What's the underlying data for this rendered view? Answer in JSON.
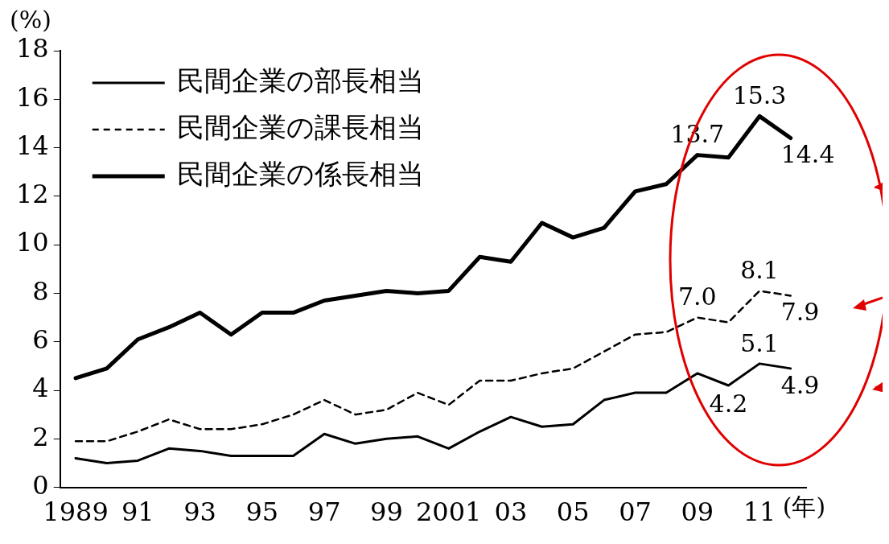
{
  "chart_data": {
    "type": "line",
    "ylabel": "(%)",
    "xlabel": "(年)",
    "categories": [
      "1989",
      null,
      "91",
      null,
      "93",
      null,
      "95",
      null,
      "97",
      null,
      "99",
      null,
      "2001",
      null,
      "03",
      null,
      "05",
      null,
      "07",
      null,
      "09",
      null,
      "11",
      null
    ],
    "ylim": [
      0,
      18
    ],
    "yticks": [
      0,
      2,
      4,
      6,
      8,
      10,
      12,
      14,
      16,
      18
    ],
    "grid": false,
    "legend": "top left",
    "marker": "none",
    "series": [
      {
        "name": "民間企業の部長相当",
        "color": "#000000",
        "line_style": "solid",
        "values": [
          1.2,
          1.0,
          1.1,
          1.6,
          1.5,
          1.3,
          1.3,
          1.3,
          2.2,
          1.8,
          2.0,
          2.1,
          1.6,
          2.3,
          2.9,
          2.5,
          2.6,
          3.6,
          3.9,
          3.9,
          4.7,
          4.2,
          5.1,
          4.9
        ],
        "value_labels": [
          null,
          null,
          null,
          null,
          null,
          null,
          null,
          null,
          null,
          null,
          null,
          null,
          null,
          null,
          null,
          null,
          null,
          null,
          null,
          null,
          null,
          "4.2",
          "5.1",
          "4.9"
        ]
      },
      {
        "name": "民間企業の課長相当",
        "color": "#000000",
        "line_style": "dashed",
        "values": [
          1.9,
          1.9,
          2.3,
          2.8,
          2.4,
          2.4,
          2.6,
          3.0,
          3.6,
          3.0,
          3.2,
          3.9,
          3.4,
          4.4,
          4.4,
          4.7,
          4.9,
          5.6,
          6.3,
          6.4,
          7.0,
          6.8,
          8.1,
          7.9
        ],
        "value_labels": [
          null,
          null,
          null,
          null,
          null,
          null,
          null,
          null,
          null,
          null,
          null,
          null,
          null,
          null,
          null,
          null,
          null,
          null,
          null,
          null,
          "7.0",
          null,
          "8.1",
          "7.9"
        ]
      },
      {
        "name": "民間企業の係長相当",
        "color": "#000000",
        "line_style": "solid",
        "values": [
          4.5,
          4.9,
          6.1,
          6.6,
          7.2,
          6.3,
          7.2,
          7.2,
          7.7,
          7.9,
          8.1,
          8.0,
          8.1,
          9.5,
          9.3,
          10.9,
          10.3,
          10.7,
          12.2,
          12.5,
          13.7,
          13.6,
          15.3,
          14.4
        ],
        "value_labels": [
          null,
          null,
          null,
          null,
          null,
          null,
          null,
          null,
          null,
          null,
          null,
          null,
          null,
          null,
          null,
          null,
          null,
          null,
          null,
          null,
          "13.7",
          null,
          "15.3",
          "14.4"
        ]
      }
    ]
  }
}
